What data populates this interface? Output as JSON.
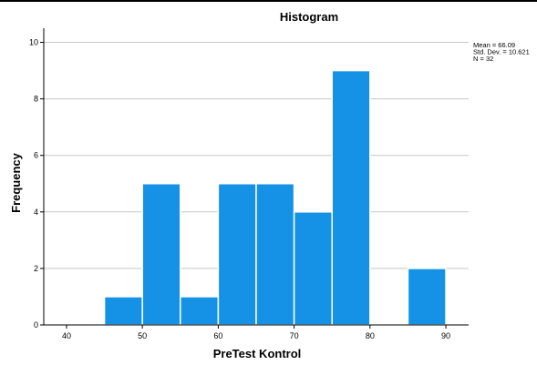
{
  "chart_data": {
    "type": "bar",
    "title": "Histogram",
    "xlabel": "PreTest Kontrol",
    "ylabel": "Frequency",
    "xlim": [
      37,
      93
    ],
    "ylim": [
      0,
      10.5
    ],
    "x_ticks": [
      40,
      50,
      60,
      70,
      80,
      90
    ],
    "y_ticks": [
      0,
      2,
      4,
      6,
      8,
      10
    ],
    "bins": [
      {
        "start": 45,
        "end": 50,
        "value": 1
      },
      {
        "start": 50,
        "end": 55,
        "value": 5
      },
      {
        "start": 55,
        "end": 60,
        "value": 1
      },
      {
        "start": 60,
        "end": 65,
        "value": 5
      },
      {
        "start": 65,
        "end": 70,
        "value": 5
      },
      {
        "start": 70,
        "end": 75,
        "value": 4
      },
      {
        "start": 75,
        "end": 80,
        "value": 9
      },
      {
        "start": 85,
        "end": 90,
        "value": 2
      }
    ],
    "bar_color": "#1592e6",
    "grid": true,
    "stats": [
      "Mean = 66.09",
      "Std. Dev. = 10.621",
      "N = 32"
    ]
  }
}
